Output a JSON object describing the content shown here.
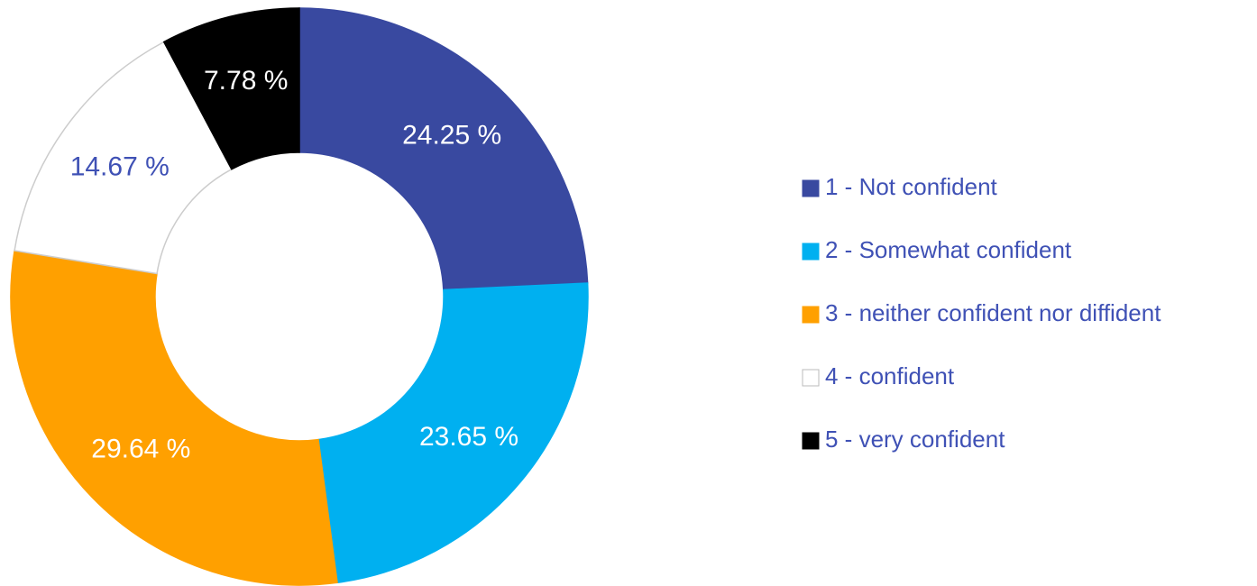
{
  "chart_data": {
    "type": "donut",
    "categories": [
      "1 - Not confident",
      "2 - Somewhat confident",
      "3 - neither confident nor diffident",
      "4 - confident",
      "5 - very confident"
    ],
    "values": [
      24.25,
      23.65,
      29.64,
      14.67,
      7.78
    ],
    "value_labels": [
      "24.25 %",
      "23.65 %",
      "29.64 %",
      "14.67 %",
      "7.78 %"
    ],
    "colors": [
      "#3949a0",
      "#00b0f0",
      "#ffa000",
      "#ffffff",
      "#000000"
    ],
    "legend": "right"
  }
}
